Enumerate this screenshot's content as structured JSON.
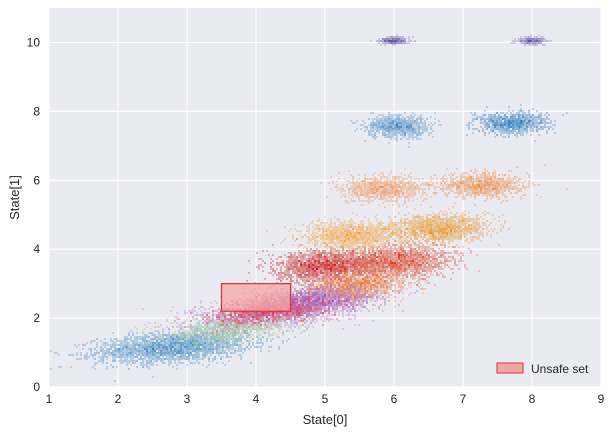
{
  "chart_data": {
    "type": "heatmap",
    "xlabel": "State[0]",
    "ylabel": "State[1]",
    "xlim": [
      1,
      9
    ],
    "ylim": [
      0,
      11
    ],
    "xticks": [
      1,
      2,
      3,
      4,
      5,
      6,
      7,
      8,
      9
    ],
    "yticks": [
      0,
      2,
      4,
      6,
      8,
      10
    ],
    "grid": true,
    "background": "#eaeaf2",
    "legend": {
      "placement": "bottom-right",
      "entries": [
        {
          "label": "Unsafe set",
          "fill": "#f4a6a6",
          "stroke": "#e0303a"
        }
      ]
    },
    "unsafe_set": {
      "x_range": [
        3.5,
        4.5
      ],
      "y_range": [
        2.2,
        3.0
      ],
      "fill": "#f4a6a6",
      "stroke": "#e0303a"
    },
    "clusters": [
      {
        "name": "",
        "cx": 2.8,
        "cy": 1.15,
        "sx": 0.55,
        "sy": 0.22,
        "rho": 0.3,
        "color": "#3182bd",
        "n": 2600
      },
      {
        "name": "",
        "cx": 3.6,
        "cy": 1.7,
        "sx": 0.45,
        "sy": 0.22,
        "rho": 0.4,
        "color": "#9acd91",
        "n": 900
      },
      {
        "name": "",
        "cx": 4.3,
        "cy": 2.2,
        "sx": 0.6,
        "sy": 0.28,
        "rho": 0.5,
        "color": "#c080c8",
        "n": 1800
      },
      {
        "name": "",
        "cx": 4.9,
        "cy": 2.55,
        "sx": 0.45,
        "sy": 0.22,
        "rho": 0.4,
        "color": "#a04fb0",
        "n": 1500
      },
      {
        "name": "",
        "cx": 4.2,
        "cy": 2.2,
        "sx": 0.4,
        "sy": 0.18,
        "rho": 0.4,
        "color": "#d62f4a",
        "n": 800
      },
      {
        "name": "",
        "cx": 5.0,
        "cy": 3.5,
        "sx": 0.35,
        "sy": 0.22,
        "rho": 0.1,
        "color": "#cc1a1a",
        "n": 1800
      },
      {
        "name": "",
        "cx": 5.55,
        "cy": 3.0,
        "sx": 0.35,
        "sy": 0.2,
        "rho": 0.2,
        "color": "#f07a2a",
        "n": 1200
      },
      {
        "name": "",
        "cx": 6.05,
        "cy": 3.65,
        "sx": 0.38,
        "sy": 0.22,
        "rho": 0.1,
        "color": "#d83a1a",
        "n": 1800
      },
      {
        "name": "",
        "cx": 5.4,
        "cy": 4.4,
        "sx": 0.35,
        "sy": 0.2,
        "rho": 0.1,
        "color": "#f29a28",
        "n": 1400
      },
      {
        "name": "",
        "cx": 6.65,
        "cy": 4.6,
        "sx": 0.35,
        "sy": 0.2,
        "rho": 0.1,
        "color": "#e8901e",
        "n": 1400
      },
      {
        "name": "",
        "cx": 5.85,
        "cy": 5.75,
        "sx": 0.3,
        "sy": 0.18,
        "rho": 0.0,
        "color": "#f08c4a",
        "n": 1000
      },
      {
        "name": "",
        "cx": 7.25,
        "cy": 5.85,
        "sx": 0.3,
        "sy": 0.18,
        "rho": 0.0,
        "color": "#ec8a44",
        "n": 1000
      },
      {
        "name": "",
        "cx": 6.05,
        "cy": 7.55,
        "sx": 0.22,
        "sy": 0.16,
        "rho": 0.0,
        "color": "#2b7bba",
        "n": 900
      },
      {
        "name": "",
        "cx": 7.7,
        "cy": 7.65,
        "sx": 0.25,
        "sy": 0.16,
        "rho": 0.0,
        "color": "#2b7bba",
        "n": 900
      },
      {
        "name": "",
        "cx": 6.0,
        "cy": 10.05,
        "sx": 0.1,
        "sy": 0.05,
        "rho": 0.0,
        "color": "#5e4fa2",
        "n": 350
      },
      {
        "name": "",
        "cx": 8.0,
        "cy": 10.05,
        "sx": 0.1,
        "sy": 0.05,
        "rho": 0.0,
        "color": "#5e4fa2",
        "n": 350
      }
    ]
  }
}
